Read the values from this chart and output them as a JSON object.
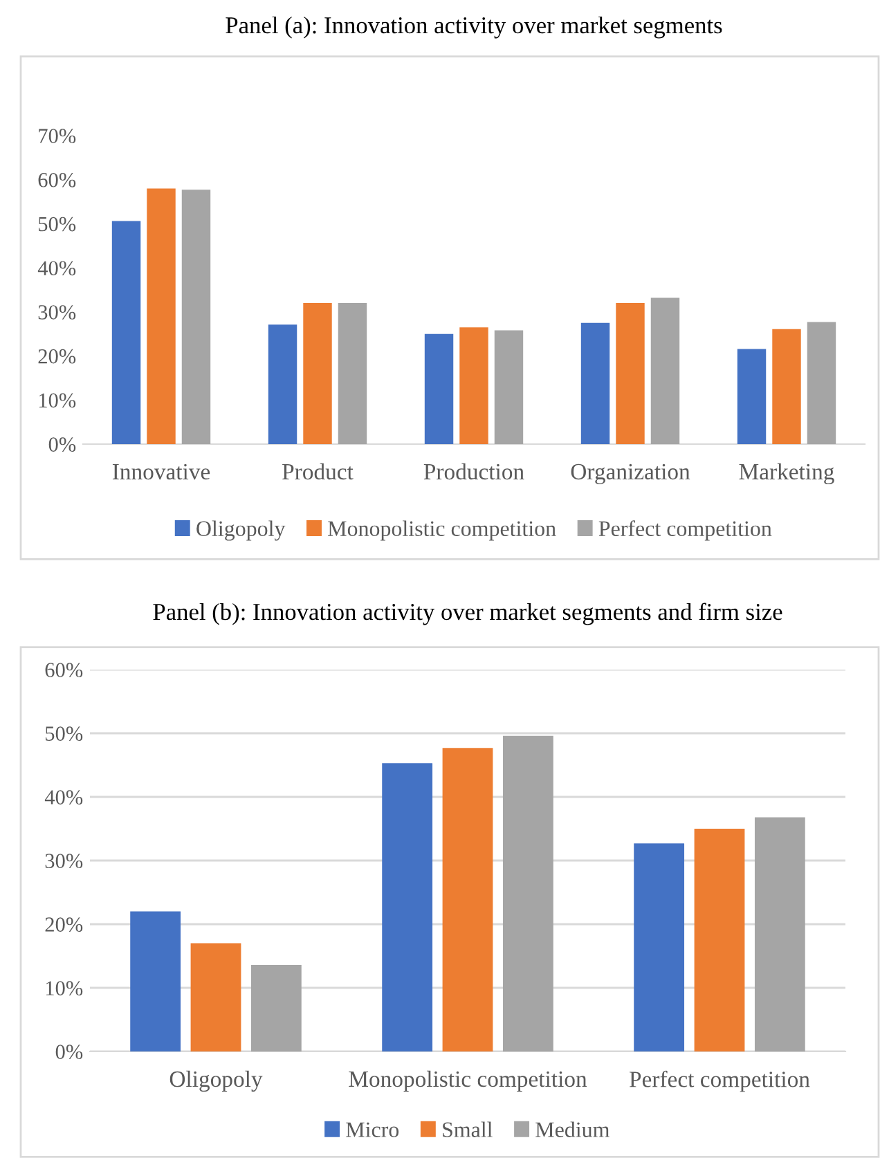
{
  "chart_data": [
    {
      "type": "bar",
      "title": "Panel (a): Innovation activity over market segments",
      "categories": [
        "Innovative",
        "Product",
        "Production",
        "Organization",
        "Marketing"
      ],
      "series": [
        {
          "name": "Oligopoly",
          "color": "#4472c4",
          "values": [
            50.6,
            27.1,
            25.0,
            27.5,
            21.6
          ]
        },
        {
          "name": "Monopolistic competition",
          "color": "#ed7d31",
          "values": [
            58.0,
            32.0,
            26.5,
            32.0,
            26.1
          ]
        },
        {
          "name": "Perfect competition",
          "color": "#a5a5a5",
          "values": [
            57.7,
            32.0,
            25.8,
            33.2,
            27.7
          ]
        }
      ],
      "ylim": [
        0,
        70
      ],
      "yticks": [
        {
          "value": 0,
          "label": "0%"
        },
        {
          "value": 10,
          "label": "10%"
        },
        {
          "value": 20,
          "label": "20%"
        },
        {
          "value": 30,
          "label": "30%"
        },
        {
          "value": 40,
          "label": "40%"
        },
        {
          "value": 50,
          "label": "50%"
        },
        {
          "value": 60,
          "label": "60%"
        },
        {
          "value": 70,
          "label": "70%"
        }
      ],
      "grid": false,
      "legend": "bottom"
    },
    {
      "type": "bar",
      "title": "Panel (b): Innovation activity over market segments and firm size",
      "categories": [
        "Oligopoly",
        "Monopolistic competition",
        "Perfect competition"
      ],
      "series": [
        {
          "name": "Micro",
          "color": "#4472c4",
          "values": [
            22.0,
            45.3,
            32.7
          ]
        },
        {
          "name": "Small",
          "color": "#ed7d31",
          "values": [
            17.0,
            47.7,
            35.0
          ]
        },
        {
          "name": "Medium",
          "color": "#a5a5a5",
          "values": [
            13.6,
            49.6,
            36.8
          ]
        }
      ],
      "ylim": [
        0,
        60
      ],
      "yticks": [
        {
          "value": 0,
          "label": "0%"
        },
        {
          "value": 10,
          "label": "10%"
        },
        {
          "value": 20,
          "label": "20%"
        },
        {
          "value": 30,
          "label": "30%"
        },
        {
          "value": 40,
          "label": "40%"
        },
        {
          "value": 50,
          "label": "50%"
        },
        {
          "value": 60,
          "label": "60%"
        }
      ],
      "grid": "y",
      "legend": "bottom"
    }
  ]
}
